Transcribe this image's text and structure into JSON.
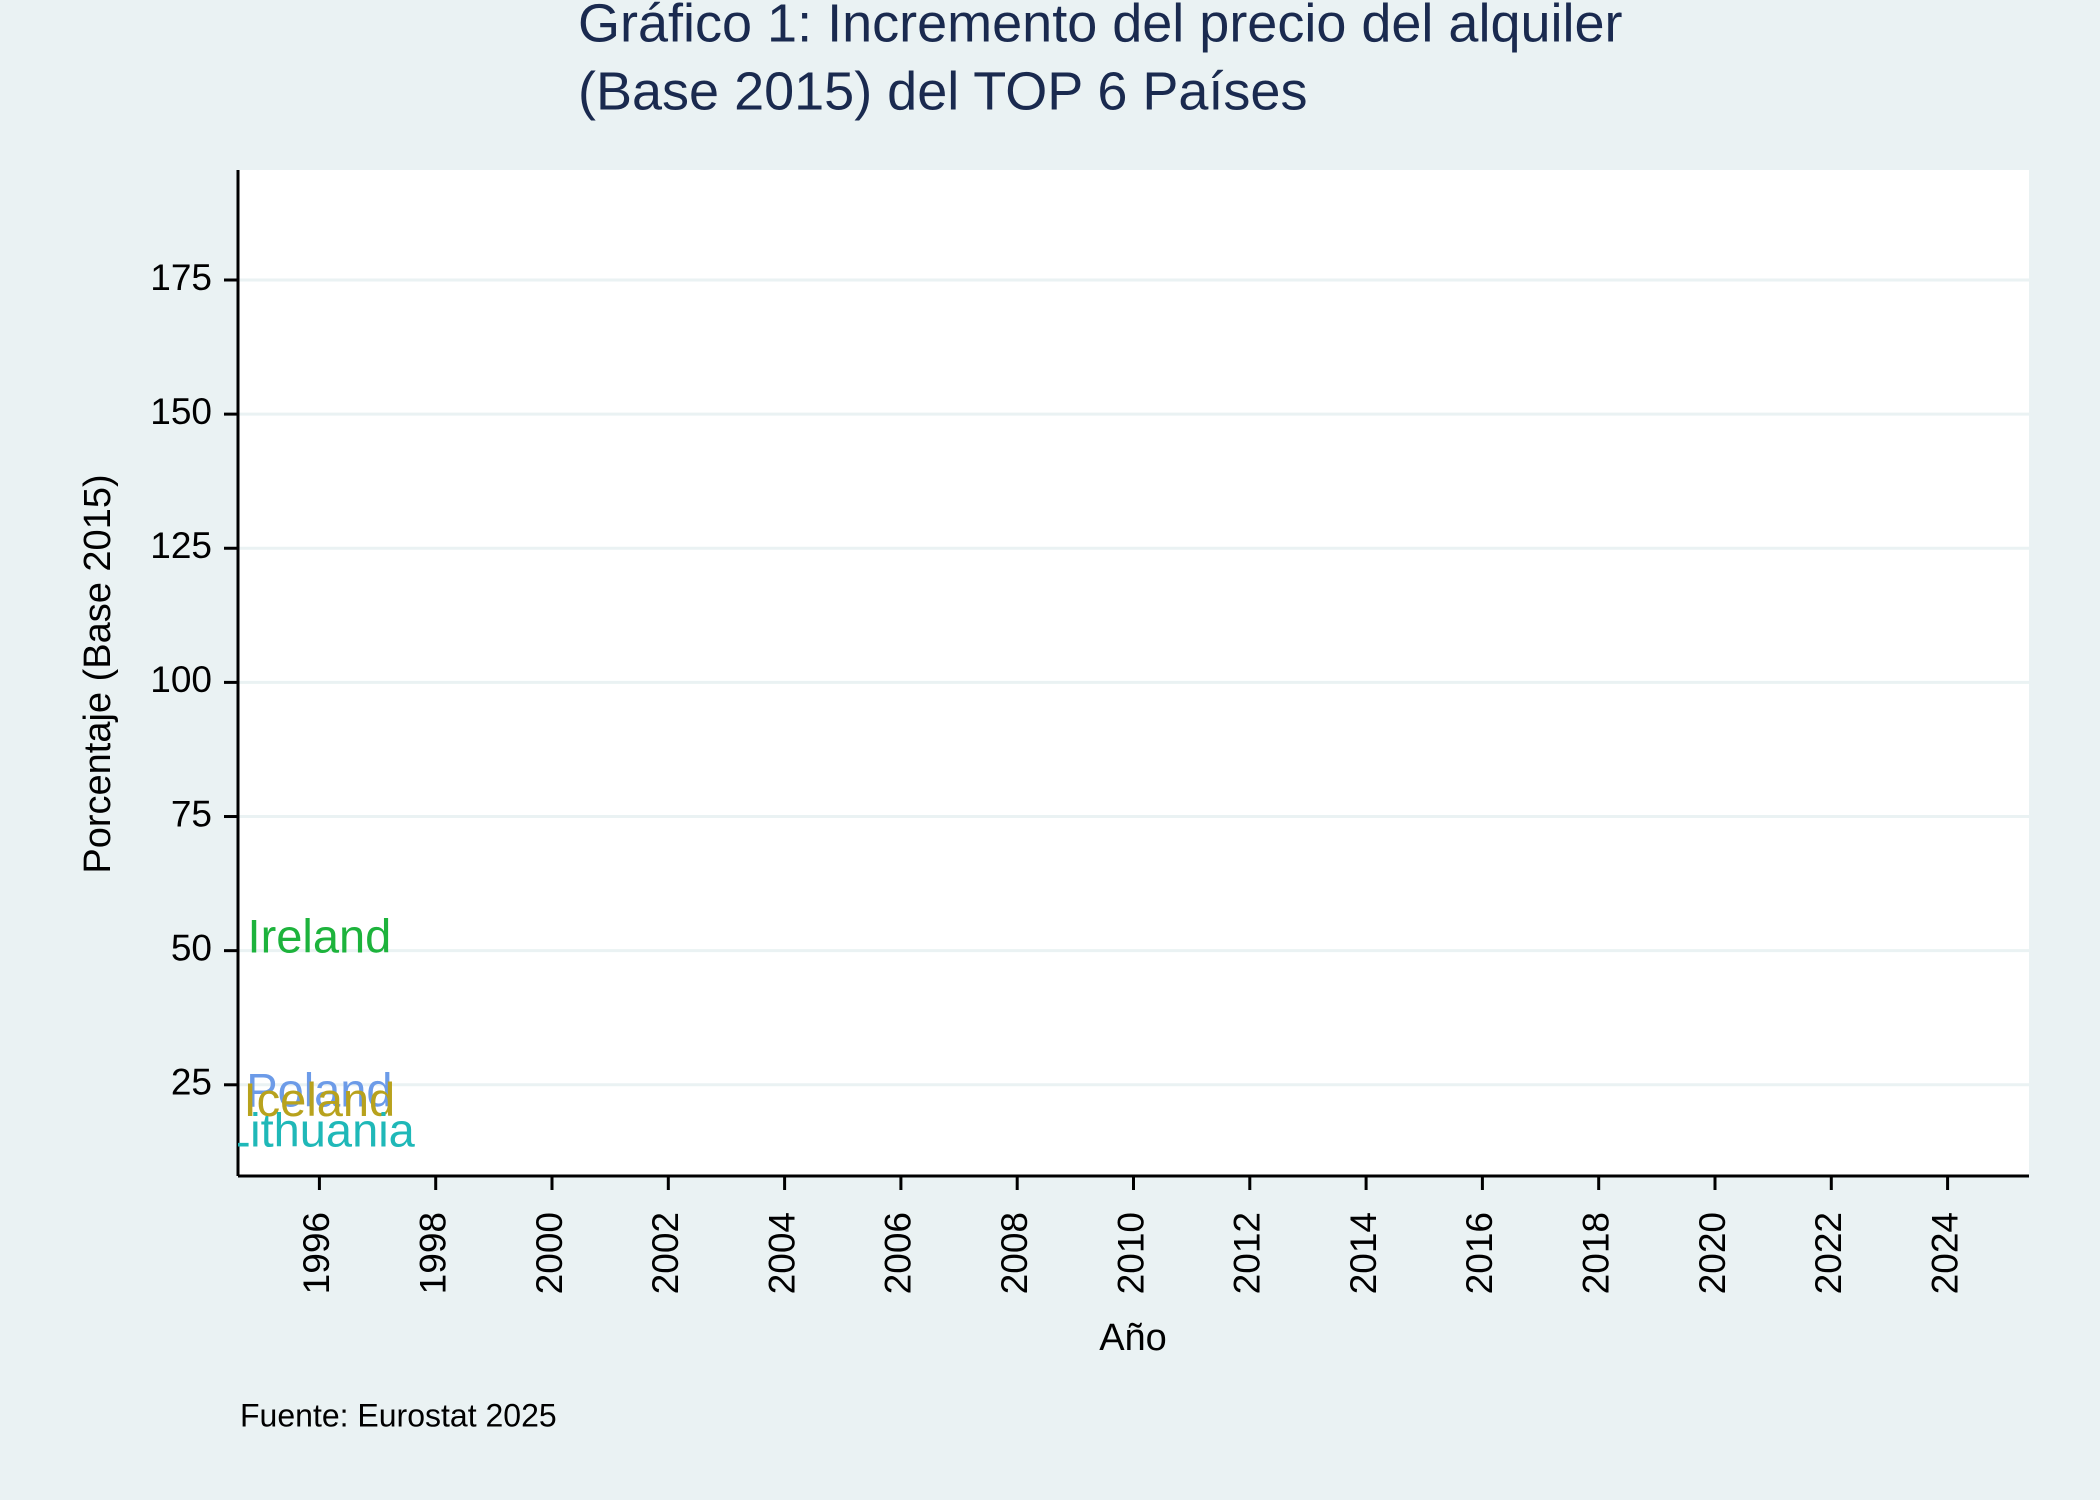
{
  "chart_data": {
    "type": "label",
    "title": [
      "Gráfico 1: Incremento del precio del alquiler",
      "(Base 2015) del TOP 6 Países"
    ],
    "x_label": "Año",
    "y_label": "Porcentaje (Base 2015)",
    "note": "Fuente: Eurostat 2025",
    "x": [
      1996
    ],
    "series": [
      {
        "name": "Ireland",
        "color": "#1db33c",
        "values": [
          52
        ]
      },
      {
        "name": "Poland",
        "color": "#6c9be8",
        "values": [
          23.3
        ]
      },
      {
        "name": "Iceland",
        "color": "#b8a21d",
        "values": [
          21.5
        ]
      },
      {
        "name": "Lithuania",
        "color": "#1fb8b8",
        "values": [
          15.8
        ]
      }
    ],
    "xlim": [
      1994.6,
      2025.4
    ],
    "xticks": [
      1996,
      1998,
      2000,
      2002,
      2004,
      2006,
      2008,
      2010,
      2012,
      2014,
      2016,
      2018,
      2020,
      2022,
      2024
    ],
    "ylim": [
      8,
      195.5
    ],
    "yticks": [
      25,
      50,
      75,
      100,
      125,
      150,
      175
    ],
    "grid": true
  }
}
